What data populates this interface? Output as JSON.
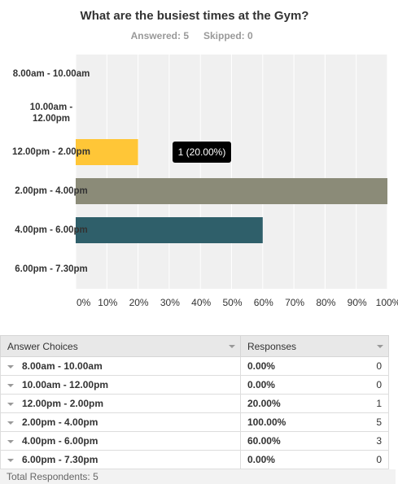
{
  "chart_data": {
    "type": "bar",
    "orientation": "horizontal",
    "title": "What are the busiest times at the Gym?",
    "answered": "Answered: 5",
    "skipped": "Skipped: 0",
    "categories": [
      "8.00am - 10.00am",
      "10.00am - 12.00pm",
      "12.00pm - 2.00pm",
      "2.00pm - 4.00pm",
      "4.00pm - 6.00pm",
      "6.00pm - 7.30pm"
    ],
    "values": [
      0,
      0,
      20,
      100,
      60,
      0
    ],
    "colors": [
      "#ffc637",
      "#ffc637",
      "#ffc637",
      "#8b8b78",
      "#2f5f6a",
      "#2f5f6a"
    ],
    "xlim": [
      0,
      100
    ],
    "xticks": [
      {
        "value": 0,
        "label": "0%"
      },
      {
        "value": 10,
        "label": "10%"
      },
      {
        "value": 20,
        "label": "20%"
      },
      {
        "value": 30,
        "label": "30%"
      },
      {
        "value": 40,
        "label": "40%"
      },
      {
        "value": 50,
        "label": "50%"
      },
      {
        "value": 60,
        "label": "60%"
      },
      {
        "value": 70,
        "label": "70%"
      },
      {
        "value": 80,
        "label": "80%"
      },
      {
        "value": 90,
        "label": "90%"
      },
      {
        "value": 100,
        "label": "100%"
      }
    ],
    "grid": true,
    "annotation": {
      "text": "1 (20.00%)",
      "category": 2
    }
  },
  "table": {
    "header": [
      "Answer Choices",
      "Responses"
    ],
    "rows": [
      [
        "8.00am - 10.00am",
        "0.00%",
        "0"
      ],
      [
        "10.00am - 12.00pm",
        "0.00%",
        "0"
      ],
      [
        "12.00pm - 2.00pm",
        "20.00%",
        "1"
      ],
      [
        "2.00pm - 4.00pm",
        "100.00%",
        "5"
      ],
      [
        "4.00pm - 6.00pm",
        "60.00%",
        "3"
      ],
      [
        "6.00pm - 7.30pm",
        "0.00%",
        "0"
      ]
    ],
    "footer": "Total Respondents: 5"
  }
}
